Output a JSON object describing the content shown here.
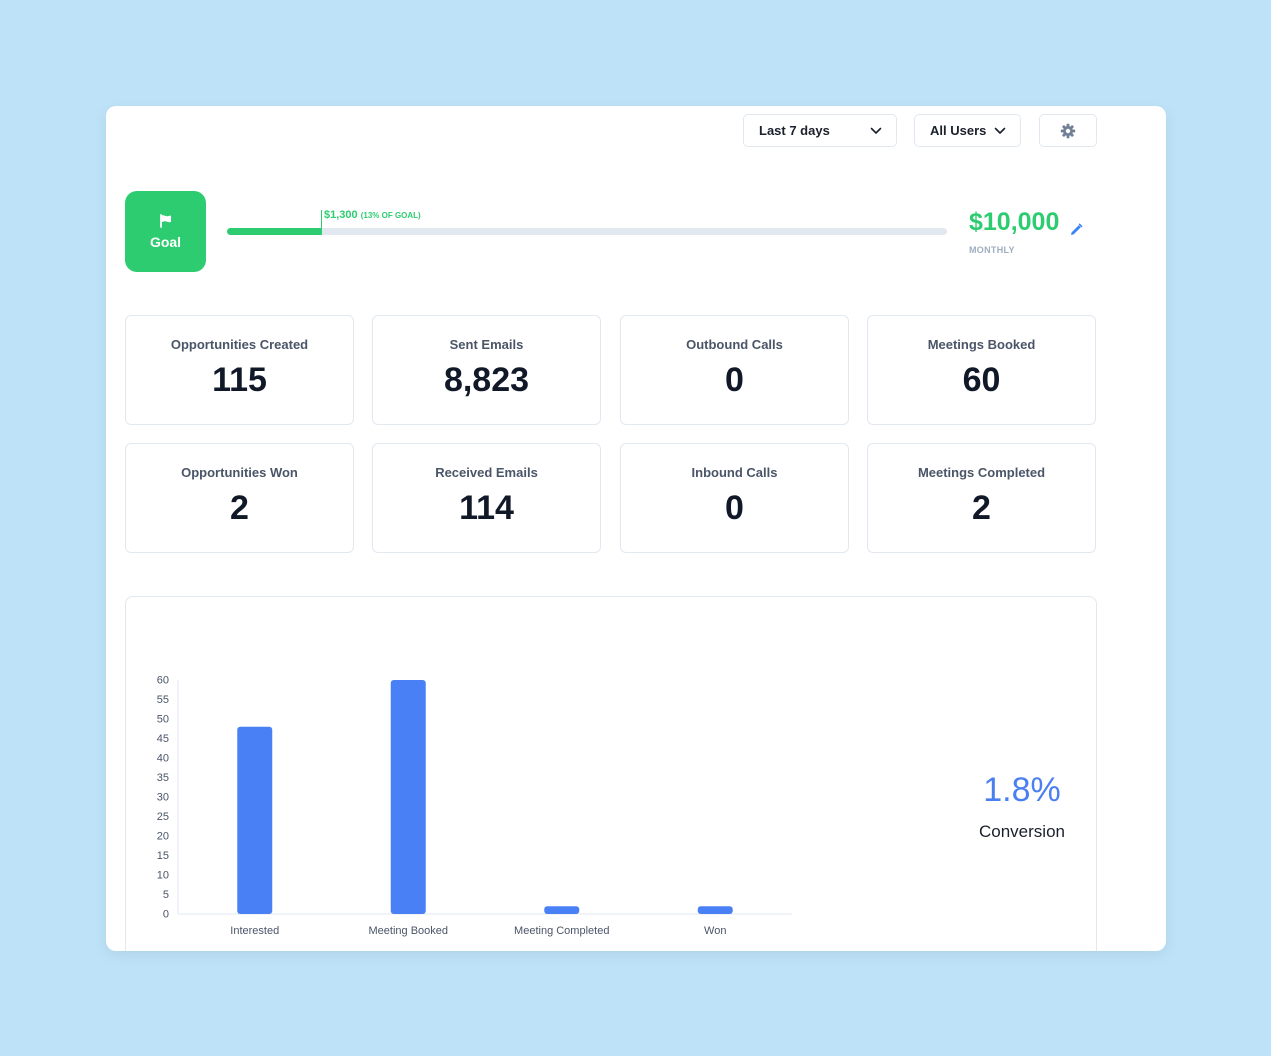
{
  "filters": {
    "date_range": "Last 7 days",
    "users": "All Users"
  },
  "goal": {
    "label": "Goal",
    "progress_amount": "$1,300",
    "progress_note": "(13% OF GOAL)",
    "progress_fraction": 0.13,
    "target": "$10,000",
    "period": "MONTHLY"
  },
  "stats": [
    {
      "label": "Opportunities Created",
      "value": "115"
    },
    {
      "label": "Sent Emails",
      "value": "8,823"
    },
    {
      "label": "Outbound Calls",
      "value": "0"
    },
    {
      "label": "Meetings Booked",
      "value": "60"
    },
    {
      "label": "Opportunities Won",
      "value": "2"
    },
    {
      "label": "Received Emails",
      "value": "114"
    },
    {
      "label": "Inbound Calls",
      "value": "0"
    },
    {
      "label": "Meetings Completed",
      "value": "2"
    }
  ],
  "chart_data": {
    "type": "bar",
    "categories": [
      "Interested",
      "Meeting Booked",
      "Meeting Completed",
      "Won"
    ],
    "values": [
      48,
      60,
      2,
      2
    ],
    "ylim": [
      0,
      60
    ],
    "yticks": [
      0,
      5,
      10,
      15,
      20,
      25,
      30,
      35,
      40,
      45,
      50,
      55,
      60
    ],
    "grid": false,
    "color": "#4a80f5"
  },
  "conversion": {
    "value": "1.8%",
    "label": "Conversion"
  },
  "colors": {
    "accent_green": "#2ecc71",
    "bar_blue": "#4a80f5",
    "background": "#bee3f8"
  },
  "icons": {
    "flag": "flag-icon",
    "settings": "gear-icon",
    "edit": "pencil-icon",
    "dropdown": "chevron-down-icon"
  }
}
